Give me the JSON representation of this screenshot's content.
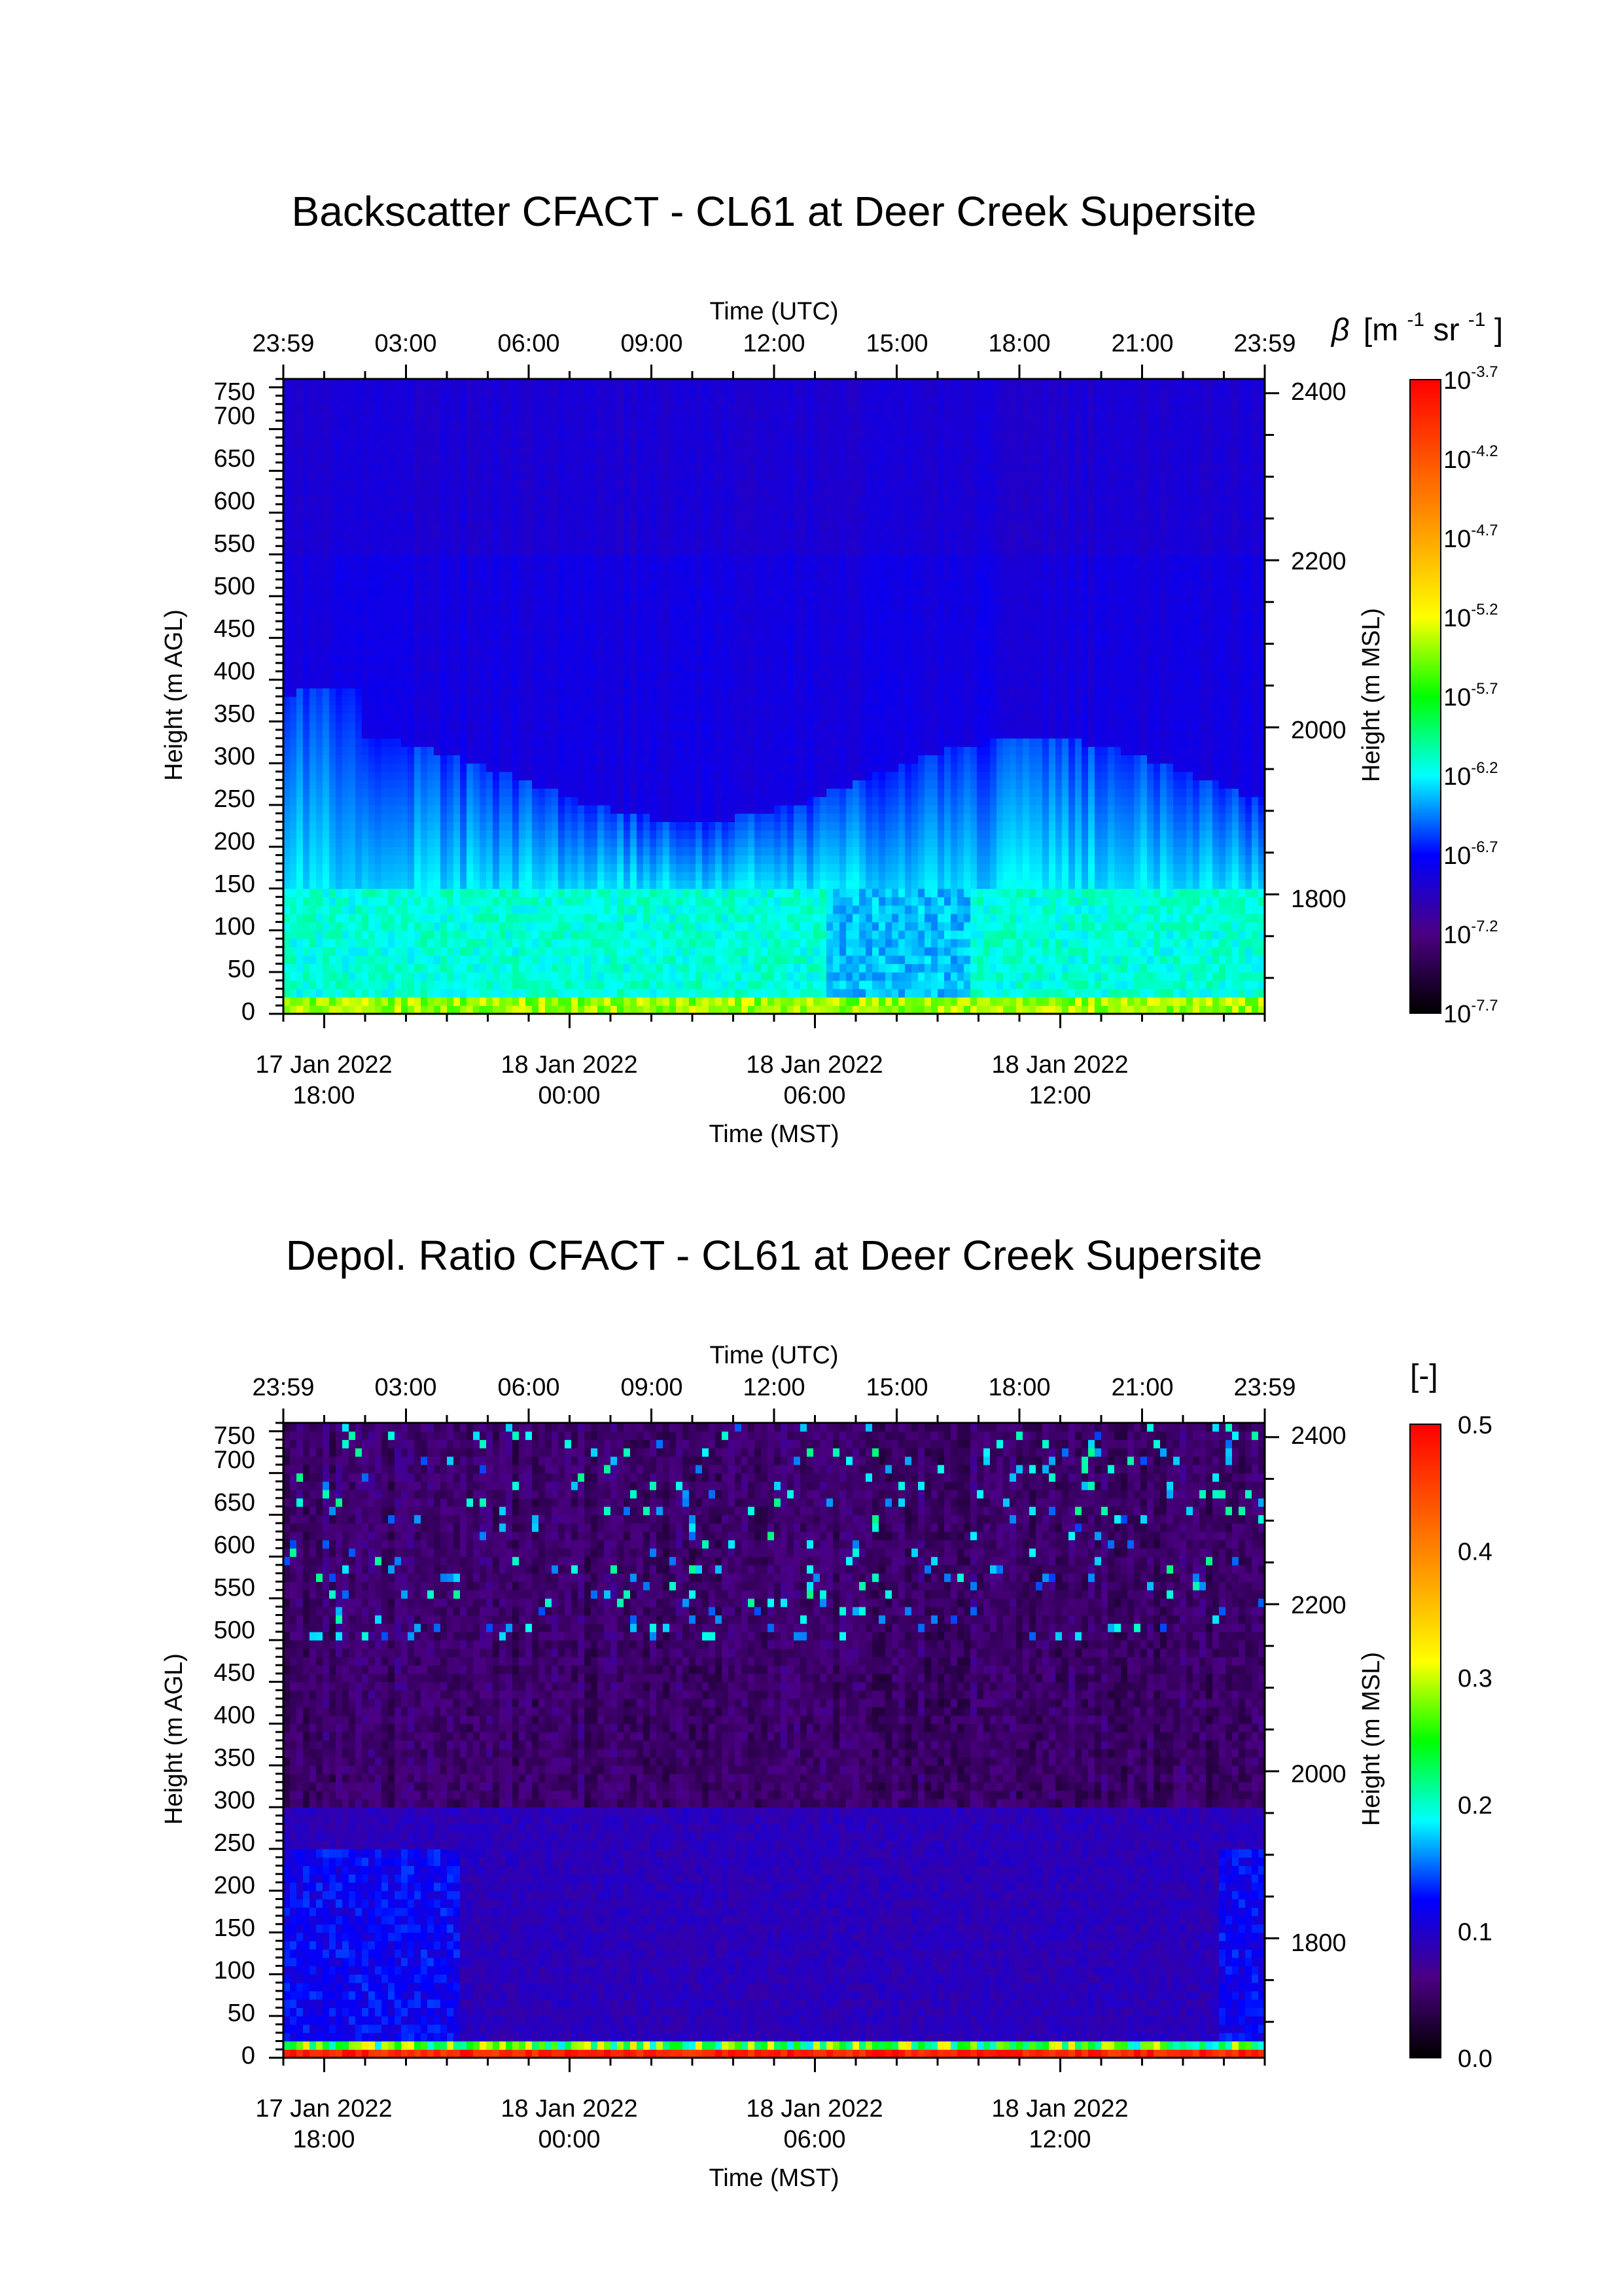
{
  "chart_data": [
    {
      "type": "heatmap",
      "title": "Backscatter CFACT - CL61 at Deer Creek Supersite",
      "top_axis": {
        "label": "Time (UTC)",
        "ticks": [
          "23:59",
          "03:00",
          "06:00",
          "09:00",
          "12:00",
          "15:00",
          "18:00",
          "21:00",
          "23:59"
        ]
      },
      "bottom_axis": {
        "label": "Time (MST)",
        "ticks": [
          {
            "date": "17 Jan 2022",
            "time": "18:00",
            "hours_from_start": 1
          },
          {
            "date": "18 Jan 2022",
            "time": "00:00",
            "hours_from_start": 7
          },
          {
            "date": "18 Jan 2022",
            "time": "06:00",
            "hours_from_start": 13
          },
          {
            "date": "18 Jan 2022",
            "time": "12:00",
            "hours_from_start": 19
          }
        ],
        "range_hours": [
          0,
          24
        ]
      },
      "left_axis": {
        "label": "Height (m AGL)",
        "ticks": [
          0,
          50,
          100,
          150,
          200,
          250,
          300,
          350,
          400,
          450,
          500,
          550,
          600,
          650,
          700,
          750
        ],
        "range": [
          0,
          760
        ]
      },
      "right_axis": {
        "label": "Height (m MSL)",
        "ticks": [
          1800,
          2000,
          2200,
          2400
        ],
        "range": [
          1657,
          2417
        ]
      },
      "colorbar": {
        "title_symbol": "β",
        "title_unit": "[m",
        "title_exp1": "-1",
        "title_mid": " sr",
        "title_exp2": "-1",
        "title_close": "]",
        "scale": "log",
        "base": "10",
        "exponents": [
          "-3.7",
          "-4.2",
          "-4.7",
          "-5.2",
          "-5.7",
          "-6.2",
          "-6.7",
          "-7.2",
          "-7.7"
        ],
        "range_log10": [
          -7.7,
          -3.7
        ]
      },
      "field_description": {
        "upper_layer_log10": -6.85,
        "aerosol_layer_top_m": 330,
        "near_surface_log10": -6.15,
        "surface_band_m": 18
      }
    },
    {
      "type": "heatmap",
      "title": "Depol. Ratio CFACT - CL61 at Deer Creek Supersite",
      "top_axis": {
        "label": "Time (UTC)",
        "ticks": [
          "23:59",
          "03:00",
          "06:00",
          "09:00",
          "12:00",
          "15:00",
          "18:00",
          "21:00",
          "23:59"
        ]
      },
      "bottom_axis": {
        "label": "Time (MST)",
        "ticks": [
          {
            "date": "17 Jan 2022",
            "time": "18:00",
            "hours_from_start": 1
          },
          {
            "date": "18 Jan 2022",
            "time": "00:00",
            "hours_from_start": 7
          },
          {
            "date": "18 Jan 2022",
            "time": "06:00",
            "hours_from_start": 13
          },
          {
            "date": "18 Jan 2022",
            "time": "12:00",
            "hours_from_start": 19
          }
        ],
        "range_hours": [
          0,
          24
        ]
      },
      "left_axis": {
        "label": "Height (m AGL)",
        "ticks": [
          0,
          50,
          100,
          150,
          200,
          250,
          300,
          350,
          400,
          450,
          500,
          550,
          600,
          650,
          700,
          750
        ],
        "range": [
          0,
          760
        ]
      },
      "right_axis": {
        "label": "Height (m MSL)",
        "ticks": [
          1800,
          2000,
          2200,
          2400
        ],
        "range": [
          1657,
          2417
        ]
      },
      "colorbar": {
        "title": "[-]",
        "scale": "linear",
        "ticks": [
          "0.5",
          "0.4",
          "0.3",
          "0.2",
          "0.1",
          "0.0"
        ],
        "range": [
          0.0,
          0.5
        ]
      },
      "field_description": {
        "upper_layer_value": 0.055,
        "boundary_layer_value": 0.08,
        "surface_value": 0.5
      }
    }
  ]
}
